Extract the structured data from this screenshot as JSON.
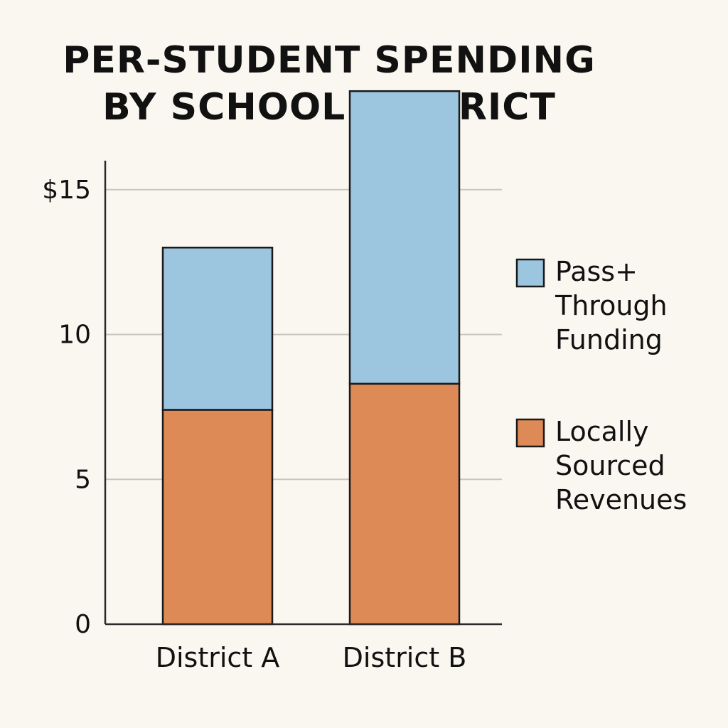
{
  "chart_data": {
    "type": "bar",
    "stacked": true,
    "title_lines": [
      "PER-STUDENT SPENDING",
      "BY SCHOOL DISTRICT"
    ],
    "xlabel": "",
    "ylabel": "",
    "categories": [
      "District A",
      "District B"
    ],
    "series": [
      {
        "name": "Locally Sourced Revenues",
        "color": "#de8a56",
        "values": [
          7.4,
          8.3
        ]
      },
      {
        "name": "Pass+ Through Funding",
        "color": "#9cc5e0",
        "values": [
          5.6,
          10.1
        ]
      }
    ],
    "legend_order": [
      {
        "lines": [
          "Pass+",
          "Through",
          "Funding"
        ],
        "color": "#9cc5e0"
      },
      {
        "lines": [
          "Locally",
          "Sourced",
          "Revenues"
        ],
        "color": "#de8a56"
      }
    ],
    "ylim": [
      0,
      20
    ],
    "y_ticks": [
      {
        "value": 0,
        "label": "0"
      },
      {
        "value": 5,
        "label": "5"
      },
      {
        "value": 10,
        "label": "10"
      },
      {
        "value": 15,
        "label": "$15"
      }
    ],
    "gridlines": [
      5,
      10,
      15,
      20
    ],
    "grid": true,
    "legend_position": "right"
  }
}
